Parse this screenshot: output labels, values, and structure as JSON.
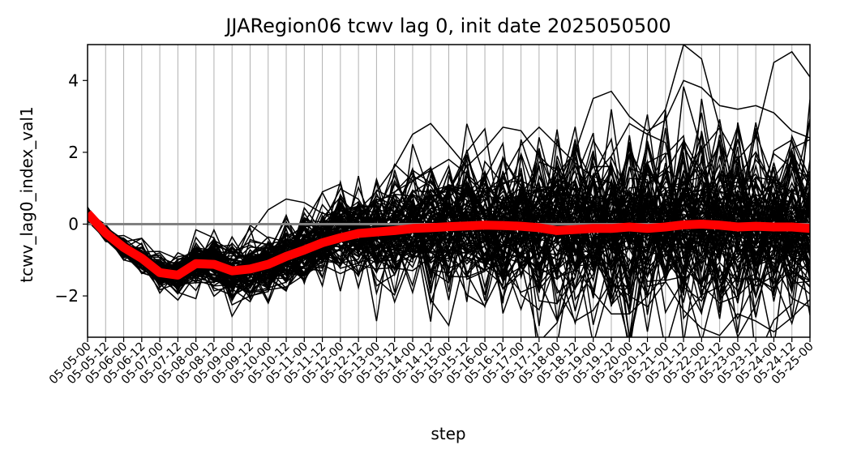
{
  "chart_data": {
    "type": "line",
    "title": "JJARegion06 tcwv lag 0, init date 2025050500",
    "xlabel": "step",
    "ylabel": "tcwv_lag0_index_val1",
    "ylim": [
      -3.15,
      5.0
    ],
    "yticks": [
      -2,
      0,
      2,
      4
    ],
    "ytick_labels": [
      "−2",
      "0",
      "2",
      "4"
    ],
    "grid": "x-only",
    "legend": "none",
    "x": [
      "05-05-00",
      "05-05-12",
      "05-06-00",
      "05-06-12",
      "05-07-00",
      "05-07-12",
      "05-08-00",
      "05-08-12",
      "05-09-00",
      "05-09-12",
      "05-10-00",
      "05-10-12",
      "05-11-00",
      "05-11-12",
      "05-12-00",
      "05-12-12",
      "05-13-00",
      "05-13-12",
      "05-14-00",
      "05-14-12",
      "05-15-00",
      "05-15-12",
      "05-16-00",
      "05-16-12",
      "05-17-00",
      "05-17-12",
      "05-18-00",
      "05-18-12",
      "05-19-00",
      "05-19-12",
      "05-20-00",
      "05-20-12",
      "05-21-00",
      "05-21-12",
      "05-22-00",
      "05-22-12",
      "05-23-00",
      "05-23-12",
      "05-24-00",
      "05-24-12",
      "05-25-00"
    ],
    "ensemble_mean": [
      0.3,
      -0.25,
      -0.65,
      -0.95,
      -1.35,
      -1.42,
      -1.1,
      -1.12,
      -1.3,
      -1.25,
      -1.12,
      -0.9,
      -0.72,
      -0.52,
      -0.38,
      -0.26,
      -0.22,
      -0.18,
      -0.12,
      -0.1,
      -0.07,
      -0.05,
      -0.03,
      -0.04,
      -0.06,
      -0.1,
      -0.18,
      -0.15,
      -0.12,
      -0.12,
      -0.08,
      -0.12,
      -0.08,
      -0.02,
      0.0,
      -0.03,
      -0.08,
      -0.06,
      -0.08,
      -0.08,
      -0.12
    ],
    "highlight_members": [
      [
        0.3,
        -0.2,
        -0.7,
        -1.0,
        -1.4,
        -1.5,
        -1.2,
        -1.3,
        -1.2,
        -0.3,
        0.4,
        0.7,
        0.6,
        0.3,
        0.2,
        0.4,
        0.9,
        1.6,
        2.5,
        2.8,
        2.2,
        1.6,
        2.1,
        2.7,
        2.6,
        1.9,
        1.4,
        2.0,
        3.5,
        3.7,
        3.0,
        2.6,
        2.9,
        4.0,
        3.8,
        3.3,
        3.2,
        3.3,
        3.1,
        2.6,
        2.4
      ],
      [
        0.3,
        -0.3,
        -0.6,
        -1.0,
        -1.3,
        -1.5,
        -1.0,
        -1.2,
        -1.5,
        -1.4,
        -1.2,
        -1.0,
        -0.8,
        -0.4,
        -0.2,
        0.2,
        0.0,
        -0.4,
        -0.6,
        -0.8,
        -0.6,
        -1.0,
        -1.3,
        -0.9,
        -1.1,
        -0.8,
        -1.8,
        -2.7,
        -2.4,
        -1.6,
        -2.0,
        -2.3,
        -1.6,
        -2.4,
        -2.9,
        -3.1,
        -2.5,
        -2.7,
        -3.0,
        -2.6,
        -2.1
      ],
      [
        0.3,
        -0.2,
        -0.6,
        -0.9,
        -1.3,
        -1.4,
        -1.1,
        -1.0,
        -1.1,
        -1.0,
        -0.8,
        -0.6,
        -0.4,
        -0.2,
        0.1,
        0.3,
        0.6,
        0.9,
        1.2,
        1.5,
        1.8,
        1.4,
        0.9,
        1.3,
        2.2,
        2.7,
        2.2,
        1.7,
        1.3,
        1.9,
        2.8,
        2.5,
        3.2,
        5.0,
        4.6,
        2.7,
        1.8,
        2.4,
        4.5,
        4.8,
        4.1
      ],
      [
        0.3,
        -0.3,
        -0.7,
        -1.1,
        -1.5,
        -1.6,
        -1.3,
        -1.4,
        -1.6,
        -1.6,
        -1.5,
        -1.3,
        -1.0,
        -0.6,
        -0.4,
        -0.3,
        -0.1,
        0.3,
        0.5,
        0.2,
        -0.3,
        -0.8,
        -1.0,
        -1.5,
        -1.2,
        -0.8,
        -0.5,
        -1.2,
        -1.9,
        -2.5,
        -2.5,
        -2.0,
        -1.4,
        -0.9,
        -1.7,
        -2.2,
        -2.0,
        -1.5,
        -1.8,
        -1.2,
        -0.6
      ]
    ]
  }
}
